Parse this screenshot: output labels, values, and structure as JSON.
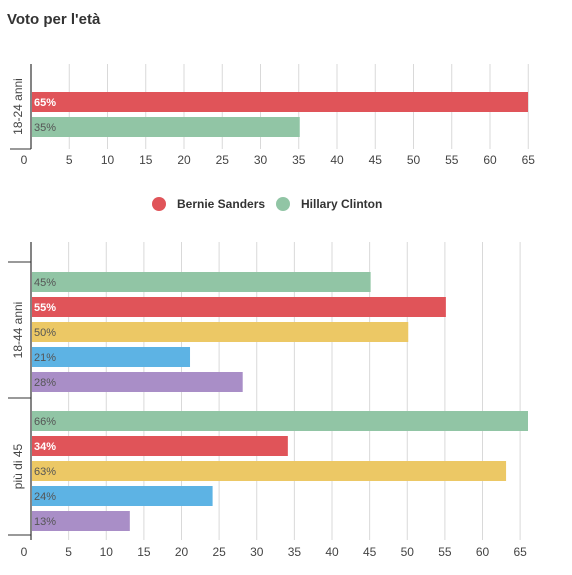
{
  "title": "Voto per l'età",
  "colors": {
    "Bernie Sanders": "#e05459",
    "Hillary Clinton": "#91c5a5",
    "series3": "#ecc865",
    "series4": "#5db3e4",
    "series5": "#a98ec7"
  },
  "chart_data": [
    {
      "type": "bar",
      "orientation": "horizontal",
      "groups": [
        {
          "label": "18-24 anni",
          "bars": [
            {
              "series": "Bernie Sanders",
              "value": 65,
              "label": "65%",
              "bold": true
            },
            {
              "series": "Hillary Clinton",
              "value": 35,
              "label": "35%",
              "bold": false
            }
          ]
        }
      ],
      "xlim": [
        0,
        65
      ],
      "ticks": [
        0,
        5,
        10,
        15,
        20,
        25,
        30,
        35,
        40,
        45,
        50,
        55,
        60,
        65
      ],
      "grid": true
    },
    {
      "type": "bar",
      "orientation": "horizontal",
      "groups": [
        {
          "label": "18-44 anni",
          "bars": [
            {
              "series": "Hillary Clinton",
              "value": 45,
              "label": "45%",
              "bold": false
            },
            {
              "series": "Bernie Sanders",
              "value": 55,
              "label": "55%",
              "bold": true
            },
            {
              "series": "series3",
              "value": 50,
              "label": "50%",
              "bold": false
            },
            {
              "series": "series4",
              "value": 21,
              "label": "21%",
              "bold": false
            },
            {
              "series": "series5",
              "value": 28,
              "label": "28%",
              "bold": false
            }
          ]
        },
        {
          "label": "più di 45",
          "bars": [
            {
              "series": "Hillary Clinton",
              "value": 66,
              "label": "66%",
              "bold": false
            },
            {
              "series": "Bernie Sanders",
              "value": 34,
              "label": "34%",
              "bold": true
            },
            {
              "series": "series3",
              "value": 63,
              "label": "63%",
              "bold": false
            },
            {
              "series": "series4",
              "value": 24,
              "label": "24%",
              "bold": false
            },
            {
              "series": "series5",
              "value": 13,
              "label": "13%",
              "bold": false
            }
          ]
        }
      ],
      "xlim": [
        0,
        66
      ],
      "ticks": [
        0,
        5,
        10,
        15,
        20,
        25,
        30,
        35,
        40,
        45,
        50,
        55,
        60,
        65
      ],
      "grid": true
    }
  ],
  "legend": {
    "placement": "center",
    "items": [
      {
        "label": "Bernie Sanders",
        "series": "Bernie Sanders"
      },
      {
        "label": "Hillary Clinton",
        "series": "Hillary Clinton"
      }
    ]
  }
}
